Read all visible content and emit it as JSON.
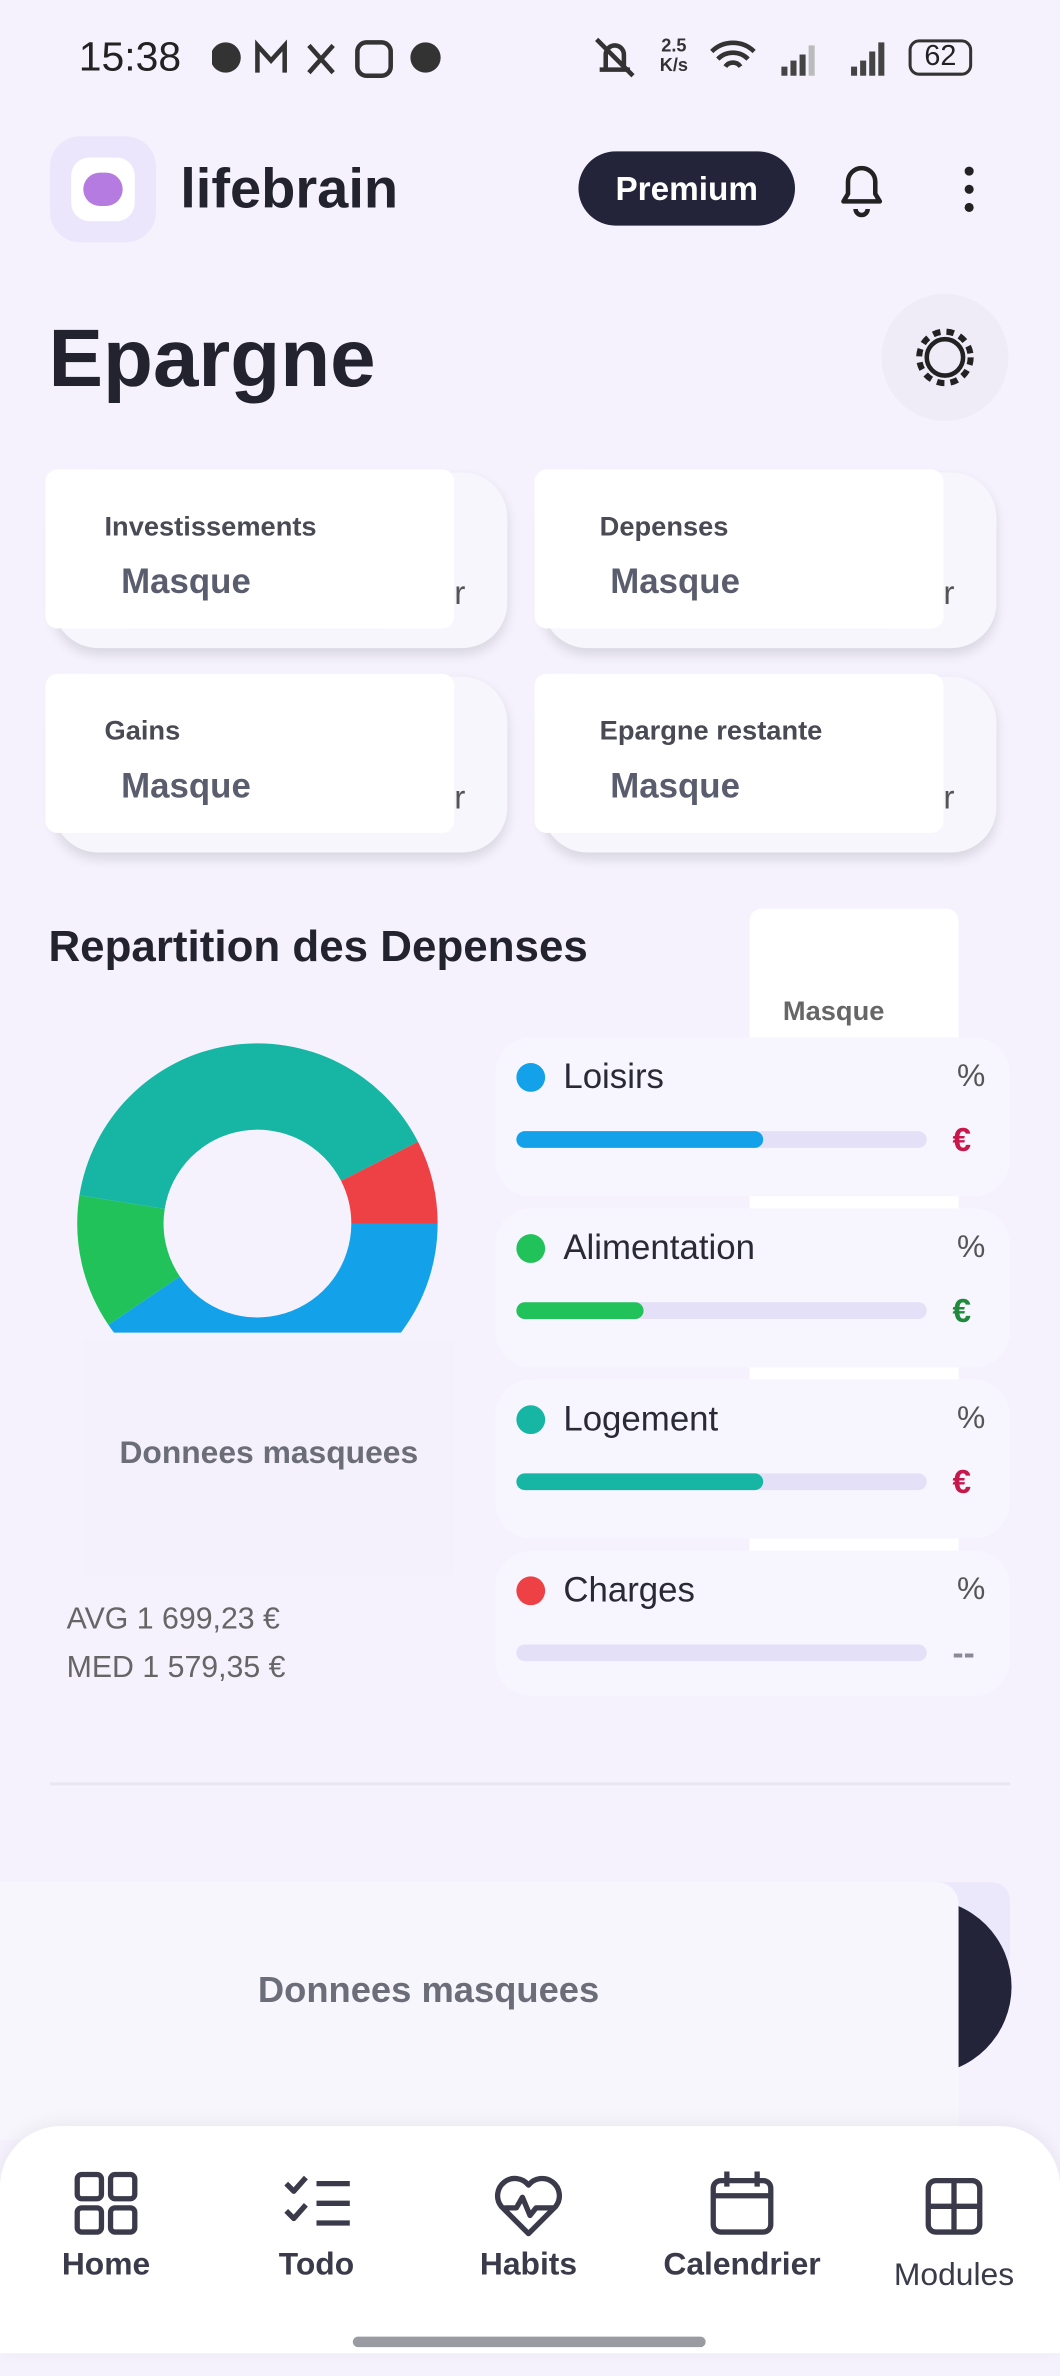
{
  "status_bar": {
    "time": "15:38",
    "network_speed": "2.5 K/s",
    "battery": "62"
  },
  "header": {
    "app_name": "lifebrain",
    "premium_button": "Premium"
  },
  "page_title": "Epargne",
  "summary_cards": [
    {
      "label": "Investissements",
      "value": "Masque",
      "clipped_text": "r"
    },
    {
      "label": "Depenses",
      "value": "Masque",
      "clipped_text": "r"
    },
    {
      "label": "Gains",
      "value": "Masque",
      "clipped_text": "r"
    },
    {
      "label": "Epargne restante",
      "value": "Masque",
      "clipped_text": "r"
    }
  ],
  "expenses": {
    "title": "Repartition des Depenses",
    "overlay_label": "Masque",
    "chart_overlay": "Donnees masquees",
    "avg": "AVG 1 699,23 €",
    "med": "MED 1 579,35 €",
    "items": [
      {
        "name": "Loisirs",
        "color": "#13a2e9",
        "share": 40.5,
        "progress": 60,
        "percent_sign": "%",
        "amount": "€",
        "amount_color": "#c8174a"
      },
      {
        "name": "Alimentation",
        "color": "#22c25a",
        "share": 12,
        "progress": 31,
        "percent_sign": "%",
        "amount": "€",
        "amount_color": "#1f8a3b"
      },
      {
        "name": "Logement",
        "color": "#17b5a3",
        "share": 40,
        "progress": 60,
        "percent_sign": "%",
        "amount": "€",
        "amount_color": "#c8174a"
      },
      {
        "name": "Charges",
        "color": "#ee4146",
        "share": 7.5,
        "progress": 0,
        "percent_sign": "%",
        "amount": "--",
        "amount_color": "#8a8a96"
      }
    ]
  },
  "bottom_panel": "Donnees masquees",
  "nav": [
    "Home",
    "Todo",
    "Habits",
    "Calendrier",
    "Modules"
  ]
}
